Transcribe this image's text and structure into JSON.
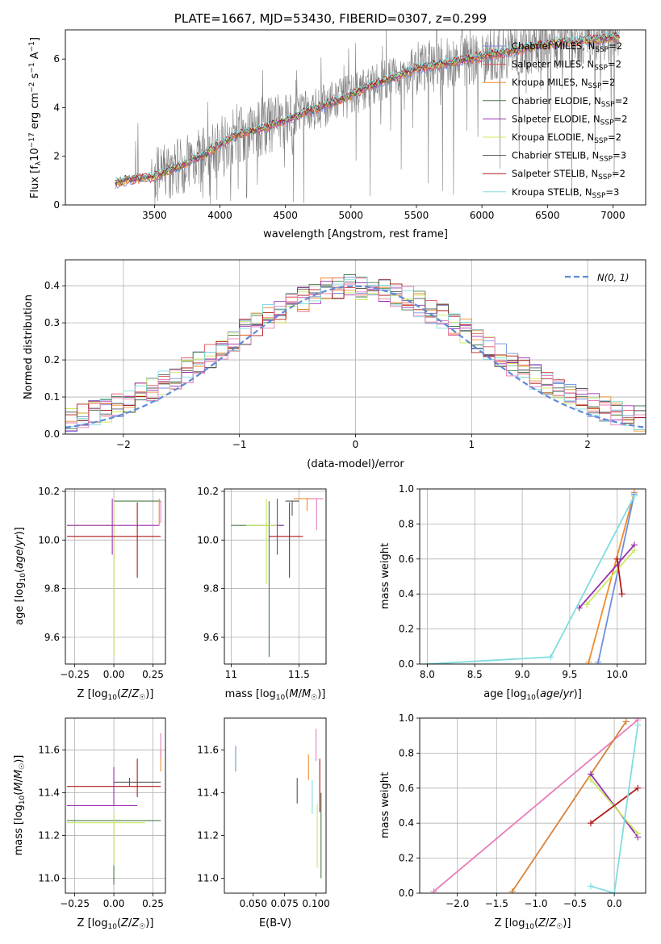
{
  "title": "PLATE=1667, MJD=53430, FIBERID=0307, z=0.299",
  "colors": {
    "chabrier_miles": "#6f8fdc",
    "salpeter_miles": "#e0505a",
    "kroupa_miles": "#f08c2a",
    "chabrier_elodie": "#4a7a4a",
    "salpeter_elodie": "#9a2fb0",
    "kroupa_elodie": "#c8e860",
    "chabrier_stelib": "#555555",
    "salpeter_stelib": "#b01818",
    "kroupa_stelib": "#80dce0",
    "pink": "#e87db8",
    "data": "#808080",
    "normal": "#5f8ad8"
  },
  "chart_data": [
    {
      "id": "spectrum",
      "type": "line",
      "xlabel": "wavelength [Angstrom, rest frame]",
      "ylabel": "Flux [f_λ10^-17 erg cm^-2 s^-1 A^-1]",
      "xlim": [
        2820,
        7250
      ],
      "ylim": [
        0,
        7.2
      ],
      "xticks": [
        3500,
        4000,
        4500,
        5000,
        5500,
        6000,
        6500,
        7000
      ],
      "yticks": [
        0,
        2,
        4,
        6
      ],
      "legend": [
        {
          "name": "Chabrier MILES, N_SSP=2",
          "color": "#6f8fdc"
        },
        {
          "name": "Salpeter MILES, N_SSP=2",
          "color": "#e0505a"
        },
        {
          "name": "Kroupa MILES, N_SSP=2",
          "color": "#f08c2a"
        },
        {
          "name": "Chabrier ELODIE, N_SSP=2",
          "color": "#4a7a4a"
        },
        {
          "name": "Salpeter ELODIE, N_SSP=2",
          "color": "#9a2fb0"
        },
        {
          "name": "Kroupa ELODIE, N_SSP=2",
          "color": "#c8e860"
        },
        {
          "name": "Chabrier STELIB, N_SSP=3",
          "color": "#555555"
        },
        {
          "name": "Salpeter STELIB, N_SSP=2",
          "color": "#b01818"
        },
        {
          "name": "Kroupa STELIB, N_SSP=3",
          "color": "#80dce0"
        }
      ],
      "model_continuum": {
        "x": [
          3200,
          3300,
          3400,
          3500,
          3600,
          3700,
          3800,
          3900,
          4000,
          4100,
          4200,
          4300,
          4400,
          4500,
          4600,
          4700,
          4800,
          4900,
          5000,
          5100,
          5200,
          5300,
          5400,
          5500,
          5600,
          5700,
          5800,
          5900,
          6000,
          6100,
          6200,
          6300,
          6400,
          6500,
          6600,
          6700,
          6800,
          6900,
          7000,
          7050
        ],
        "y": [
          0.9,
          1.05,
          1.1,
          1.15,
          1.4,
          1.6,
          1.9,
          2.1,
          2.5,
          2.8,
          3.0,
          3.1,
          3.3,
          3.5,
          3.7,
          3.9,
          4.1,
          4.3,
          4.5,
          4.8,
          5.0,
          5.2,
          5.4,
          5.6,
          5.7,
          5.8,
          5.9,
          6.0,
          6.1,
          6.2,
          6.3,
          6.4,
          6.5,
          6.6,
          6.7,
          6.7,
          6.8,
          6.8,
          6.9,
          6.9
        ]
      }
    },
    {
      "id": "residuals",
      "type": "line",
      "xlabel": "(data-model)/error",
      "ylabel": "Normed distribution",
      "xlim": [
        -2.5,
        2.5
      ],
      "ylim": [
        0,
        0.47
      ],
      "xticks": [
        -2,
        -1,
        0,
        1,
        2
      ],
      "yticks": [
        0.0,
        0.1,
        0.2,
        0.3,
        0.4
      ],
      "legend": [
        {
          "name": "N(0,1)",
          "color": "#5f8ad8"
        }
      ],
      "bins_step": 0.1
    },
    {
      "id": "age_vs_Z",
      "type": "scatter",
      "xlabel": "Z [log10(Z/Z☉)]",
      "ylabel": "age [log10(age/yr)]",
      "xlim": [
        -0.31,
        0.33
      ],
      "ylim": [
        9.49,
        10.21
      ],
      "xticks": [
        -0.25,
        0.0,
        0.25
      ],
      "yticks": [
        9.6,
        9.8,
        10.0,
        10.2
      ],
      "points": [
        {
          "x": 0.0,
          "y": 10.16,
          "xerr": [
            0.0,
            0.3
          ],
          "yerr": [
            0.64,
            0.0
          ],
          "color": "#4a7a4a"
        },
        {
          "x": 0.0,
          "y": 10.06,
          "xerr": [
            0.3,
            0.0
          ],
          "yerr": [
            0.54,
            0.1
          ],
          "color": "#c8e860"
        },
        {
          "x": 0.15,
          "y": 10.015,
          "xerr": [
            0.45,
            0.15
          ],
          "yerr": [
            0.17,
            0.14
          ],
          "color": "#b01818"
        },
        {
          "x": -0.01,
          "y": 10.06,
          "xerr": [
            0.29,
            0.3
          ],
          "yerr": [
            0.12,
            0.11
          ],
          "color": "#9a2fb0"
        },
        {
          "x": 0.29,
          "y": 10.11,
          "xerr": [
            0.0,
            0.0
          ],
          "yerr": [
            0.05,
            0.06
          ],
          "color": "#f08c2a"
        },
        {
          "x": 0.3,
          "y": 10.1,
          "xerr": [
            0.0,
            0.0
          ],
          "yerr": [
            0.03,
            0.06
          ],
          "color": "#e87db8"
        }
      ]
    },
    {
      "id": "age_vs_mass",
      "type": "scatter",
      "xlabel": "mass [log10(M/M☉)]",
      "xlim": [
        10.95,
        11.7
      ],
      "ylim": [
        9.49,
        10.21
      ],
      "xticks": [
        11.0,
        11.5
      ],
      "yticks": [
        9.6,
        9.8,
        10.0,
        10.2
      ],
      "points": [
        {
          "x": 11.28,
          "y": 10.06,
          "xerr": [
            0.28,
            0.1
          ],
          "yerr": [
            0.54,
            0.1
          ],
          "color": "#4a7a4a"
        },
        {
          "x": 11.26,
          "y": 10.06,
          "xerr": [
            0.15,
            0.1
          ],
          "yerr": [
            0.24,
            0.11
          ],
          "color": "#c8e860"
        },
        {
          "x": 11.43,
          "y": 10.015,
          "xerr": [
            0.15,
            0.1
          ],
          "yerr": [
            0.17,
            0.14
          ],
          "color": "#b01818"
        },
        {
          "x": 11.34,
          "y": 10.06,
          "xerr": [
            0.0,
            0.05
          ],
          "yerr": [
            0.12,
            0.11
          ],
          "color": "#9a2fb0"
        },
        {
          "x": 11.45,
          "y": 10.16,
          "xerr": [
            0.05,
            0.05
          ],
          "yerr": [
            0.06,
            0.0
          ],
          "color": "#555555"
        },
        {
          "x": 11.56,
          "y": 10.17,
          "xerr": [
            0.1,
            0.05
          ],
          "yerr": [
            0.05,
            0.0
          ],
          "color": "#f08c2a"
        },
        {
          "x": 11.63,
          "y": 10.17,
          "xerr": [
            0.05,
            0.05
          ],
          "yerr": [
            0.13,
            0.0
          ],
          "color": "#e87db8"
        }
      ]
    },
    {
      "id": "weight_vs_age",
      "type": "line",
      "xlabel": "age [log10(age/yr)]",
      "ylabel": "mass weight",
      "xlim": [
        7.92,
        10.3
      ],
      "ylim": [
        0,
        1.0
      ],
      "xticks": [
        8.0,
        8.5,
        9.0,
        9.5,
        10.0
      ],
      "yticks": [
        0.0,
        0.2,
        0.4,
        0.6,
        0.8,
        1.0
      ],
      "series": [
        {
          "x": [
            9.7,
            10.18
          ],
          "y": [
            0.01,
            0.98
          ],
          "color": "#f08c2a"
        },
        {
          "x": [
            9.8,
            10.18
          ],
          "y": [
            0.01,
            0.97
          ],
          "color": "#6f8fdc"
        },
        {
          "x": [
            9.6,
            10.18
          ],
          "y": [
            0.32,
            0.68
          ],
          "color": "#9a2fb0"
        },
        {
          "x": [
            9.68,
            10.18
          ],
          "y": [
            0.34,
            0.65
          ],
          "color": "#c8e860"
        },
        {
          "x": [
            10.0,
            10.05
          ],
          "y": [
            0.6,
            0.4
          ],
          "color": "#b01818"
        },
        {
          "x": [
            8.0,
            9.3,
            10.18
          ],
          "y": [
            0.0,
            0.04,
            0.96
          ],
          "color": "#80dce0"
        }
      ]
    },
    {
      "id": "mass_vs_Z",
      "type": "scatter",
      "xlabel": "Z [log10(Z/Z☉)]",
      "ylabel": "mass [log10(M/M☉)]",
      "xlim": [
        -0.31,
        0.33
      ],
      "ylim": [
        10.93,
        11.75
      ],
      "xticks": [
        -0.25,
        0.0,
        0.25
      ],
      "yticks": [
        11.0,
        11.2,
        11.4,
        11.6
      ],
      "points": [
        {
          "x": 0.0,
          "y": 11.27,
          "xerr": [
            0.3,
            0.3
          ],
          "yerr": [
            0.3,
            0.03
          ],
          "color": "#4a7a4a"
        },
        {
          "x": 0.0,
          "y": 11.26,
          "xerr": [
            0.3,
            0.2
          ],
          "yerr": [
            0.2,
            0.05
          ],
          "color": "#c8e860"
        },
        {
          "x": 0.15,
          "y": 11.43,
          "xerr": [
            0.45,
            0.15
          ],
          "yerr": [
            0.05,
            0.13
          ],
          "color": "#b01818"
        },
        {
          "x": 0.0,
          "y": 11.34,
          "xerr": [
            0.3,
            0.15
          ],
          "yerr": [
            0.0,
            0.18
          ],
          "color": "#9a2fb0"
        },
        {
          "x": 0.1,
          "y": 11.45,
          "xerr": [
            0.1,
            0.2
          ],
          "yerr": [
            0.02,
            0.02
          ],
          "color": "#555555"
        },
        {
          "x": 0.3,
          "y": 11.56,
          "xerr": [
            0.0,
            0.0
          ],
          "yerr": [
            0.06,
            0.04
          ],
          "color": "#f08c2a"
        },
        {
          "x": 0.3,
          "y": 11.63,
          "xerr": [
            0.0,
            0.0
          ],
          "yerr": [
            0.07,
            0.05
          ],
          "color": "#e87db8"
        }
      ]
    },
    {
      "id": "ebv",
      "type": "scatter",
      "xlabel": "E(B-V)",
      "xlim": [
        0.027,
        0.108
      ],
      "ylim": [
        10.93,
        11.75
      ],
      "xticks": [
        0.05,
        0.075,
        0.1
      ],
      "yticks": [
        11.0,
        11.2,
        11.4,
        11.6
      ],
      "points": [
        {
          "x": 0.036,
          "y": 11.56,
          "yerr": [
            0.06,
            0.06
          ],
          "color": "#6f8fdc"
        },
        {
          "x": 0.085,
          "y": 11.41,
          "yerr": [
            0.06,
            0.06
          ],
          "color": "#555555"
        },
        {
          "x": 0.094,
          "y": 11.52,
          "yerr": [
            0.06,
            0.06
          ],
          "color": "#f08c2a"
        },
        {
          "x": 0.097,
          "y": 11.38,
          "yerr": [
            0.08,
            0.08
          ],
          "color": "#80dce0"
        },
        {
          "x": 0.1,
          "y": 11.63,
          "yerr": [
            0.08,
            0.07
          ],
          "color": "#e87db8"
        },
        {
          "x": 0.101,
          "y": 11.2,
          "yerr": [
            0.15,
            0.15
          ],
          "color": "#c8e860"
        },
        {
          "x": 0.103,
          "y": 11.44,
          "yerr": [
            0.13,
            0.12
          ],
          "color": "#b01818"
        },
        {
          "x": 0.104,
          "y": 11.2,
          "yerr": [
            0.2,
            0.2
          ],
          "color": "#4a7a4a"
        }
      ]
    },
    {
      "id": "weight_vs_Z",
      "type": "line",
      "xlabel": "Z [log10(Z/Z☉)]",
      "ylabel": "mass weight",
      "xlim": [
        -2.48,
        0.4
      ],
      "ylim": [
        0,
        1.0
      ],
      "xticks": [
        -2.0,
        -1.5,
        -1.0,
        -0.5,
        0.0
      ],
      "yticks": [
        0.0,
        0.2,
        0.4,
        0.6,
        0.8,
        1.0
      ],
      "series": [
        {
          "x": [
            -2.3,
            0.3
          ],
          "y": [
            0.01,
            0.99
          ],
          "color": "#e87db8"
        },
        {
          "x": [
            -1.3,
            0.15
          ],
          "y": [
            0.01,
            0.98
          ],
          "color": "#d4843a"
        },
        {
          "x": [
            -0.3,
            0.3
          ],
          "y": [
            0.68,
            0.32
          ],
          "color": "#9a2fb0"
        },
        {
          "x": [
            -0.3,
            0.3
          ],
          "y": [
            0.65,
            0.34
          ],
          "color": "#c8e860"
        },
        {
          "x": [
            -0.3,
            0.3
          ],
          "y": [
            0.4,
            0.6
          ],
          "color": "#b01818"
        },
        {
          "x": [
            -0.3,
            0.0,
            0.3
          ],
          "y": [
            0.04,
            0.0,
            0.96
          ],
          "color": "#80dce0"
        }
      ]
    }
  ]
}
